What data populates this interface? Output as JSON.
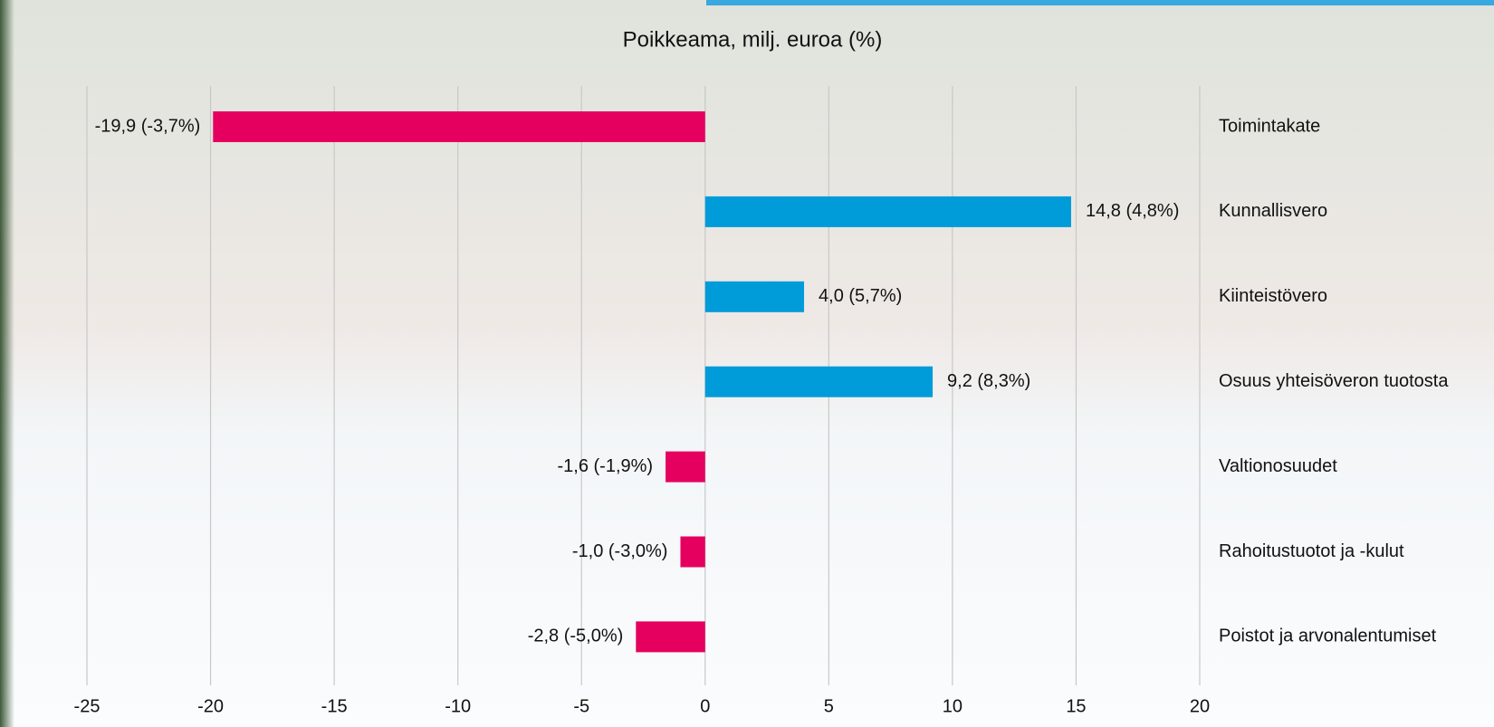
{
  "chart_data": {
    "type": "bar",
    "orientation": "horizontal",
    "title": "Poikkeama, milj. euroa (%)",
    "categories": [
      "Toimintakate",
      "Kunnallisvero",
      "Kiinteistövero",
      "Osuus yhteisöveron tuotosta",
      "Valtionosuudet",
      "Rahoitustuotot ja -kulut",
      "Poistot ja arvonalentumiset"
    ],
    "values": [
      -19.9,
      14.8,
      4.0,
      9.2,
      -1.6,
      -1.0,
      -2.8
    ],
    "value_labels": [
      "-19,9 (-3,7%)",
      "14,8 (4,8%)",
      "4,0 (5,7%)",
      "9,2 (8,3%)",
      "-1,6 (-1,9%)",
      "-1,0 (-3,0%)",
      "-2,8 (-5,0%)"
    ],
    "colors": [
      "#e5005f",
      "#009bd9",
      "#009bd9",
      "#009bd9",
      "#e5005f",
      "#e5005f",
      "#e5005f"
    ],
    "xlim": [
      -25,
      20
    ],
    "xticks": [
      -25,
      -20,
      -15,
      -10,
      -5,
      0,
      5,
      10,
      15,
      20
    ],
    "grid": true
  }
}
